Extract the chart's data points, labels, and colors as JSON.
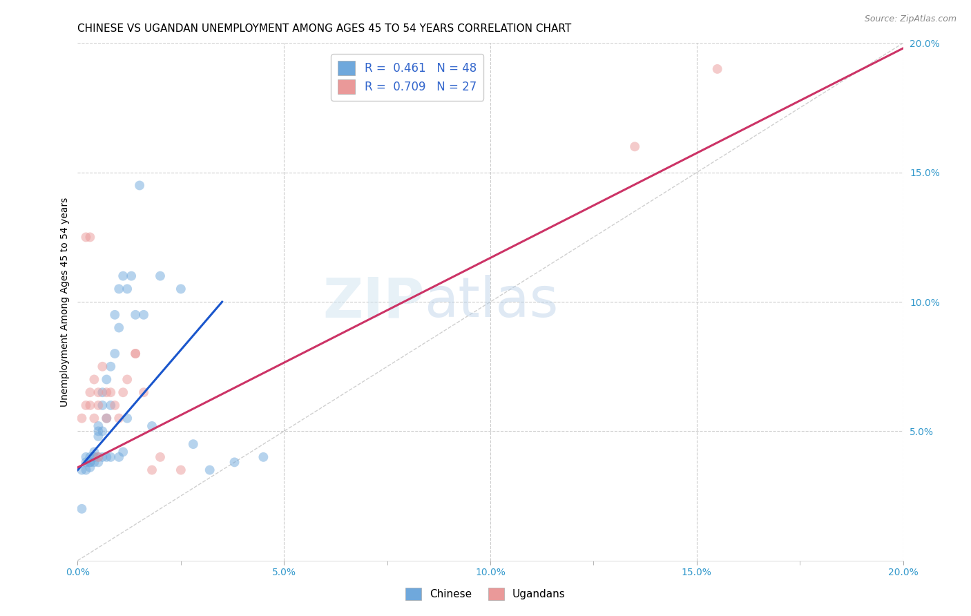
{
  "title": "CHINESE VS UGANDAN UNEMPLOYMENT AMONG AGES 45 TO 54 YEARS CORRELATION CHART",
  "source": "Source: ZipAtlas.com",
  "ylabel": "Unemployment Among Ages 45 to 54 years",
  "xlim": [
    0.0,
    0.2
  ],
  "ylim": [
    0.0,
    0.2
  ],
  "xtick_labels": [
    "0.0%",
    "",
    "5.0%",
    "",
    "10.0%",
    "",
    "15.0%",
    "",
    "20.0%"
  ],
  "xtick_vals": [
    0.0,
    0.025,
    0.05,
    0.075,
    0.1,
    0.125,
    0.15,
    0.175,
    0.2
  ],
  "xtick_display": [
    "0.0%",
    "5.0%",
    "10.0%",
    "15.0%",
    "20.0%"
  ],
  "xtick_display_vals": [
    0.0,
    0.05,
    0.1,
    0.15,
    0.2
  ],
  "ytick_labels": [
    "5.0%",
    "10.0%",
    "15.0%",
    "20.0%"
  ],
  "ytick_vals": [
    0.05,
    0.1,
    0.15,
    0.2
  ],
  "legend_labels": [
    "R =  0.461   N = 48",
    "R =  0.709   N = 27"
  ],
  "chinese_color": "#6fa8dc",
  "ugandan_color": "#ea9999",
  "chinese_line_color": "#1a56cc",
  "ugandan_line_color": "#cc3366",
  "diagonal_color": "#b0b0b0",
  "watermark_zip": "ZIP",
  "watermark_atlas": "atlas",
  "chinese_x": [
    0.001,
    0.002,
    0.002,
    0.003,
    0.003,
    0.003,
    0.004,
    0.004,
    0.004,
    0.004,
    0.005,
    0.005,
    0.005,
    0.005,
    0.005,
    0.006,
    0.006,
    0.006,
    0.006,
    0.007,
    0.007,
    0.007,
    0.008,
    0.008,
    0.008,
    0.009,
    0.009,
    0.01,
    0.01,
    0.01,
    0.011,
    0.011,
    0.012,
    0.012,
    0.013,
    0.014,
    0.015,
    0.016,
    0.018,
    0.02,
    0.001,
    0.002,
    0.003,
    0.025,
    0.028,
    0.032,
    0.038,
    0.045
  ],
  "chinese_y": [
    0.035,
    0.04,
    0.038,
    0.04,
    0.036,
    0.038,
    0.04,
    0.042,
    0.038,
    0.04,
    0.05,
    0.052,
    0.048,
    0.04,
    0.038,
    0.06,
    0.065,
    0.05,
    0.04,
    0.07,
    0.055,
    0.04,
    0.075,
    0.06,
    0.04,
    0.095,
    0.08,
    0.105,
    0.09,
    0.04,
    0.11,
    0.042,
    0.105,
    0.055,
    0.11,
    0.095,
    0.145,
    0.095,
    0.052,
    0.11,
    0.02,
    0.035,
    0.038,
    0.105,
    0.045,
    0.035,
    0.038,
    0.04
  ],
  "ugandan_x": [
    0.001,
    0.002,
    0.003,
    0.003,
    0.004,
    0.004,
    0.005,
    0.005,
    0.006,
    0.007,
    0.007,
    0.008,
    0.009,
    0.01,
    0.011,
    0.012,
    0.014,
    0.016,
    0.018,
    0.02,
    0.002,
    0.003,
    0.005,
    0.014,
    0.025,
    0.135,
    0.155
  ],
  "ugandan_y": [
    0.055,
    0.06,
    0.06,
    0.065,
    0.055,
    0.07,
    0.06,
    0.065,
    0.075,
    0.055,
    0.065,
    0.065,
    0.06,
    0.055,
    0.065,
    0.07,
    0.08,
    0.065,
    0.035,
    0.04,
    0.125,
    0.125,
    0.04,
    0.08,
    0.035,
    0.16,
    0.19
  ],
  "chinese_line_x": [
    0.0,
    0.035
  ],
  "chinese_line_y": [
    0.035,
    0.1
  ],
  "ugandan_line_x": [
    0.0,
    0.2
  ],
  "ugandan_line_y": [
    0.036,
    0.198
  ],
  "background_color": "#ffffff",
  "grid_color": "#cccccc",
  "title_fontsize": 11,
  "axis_label_fontsize": 10,
  "tick_fontsize": 10,
  "marker_size": 100,
  "marker_alpha": 0.5,
  "line_width": 2.2
}
